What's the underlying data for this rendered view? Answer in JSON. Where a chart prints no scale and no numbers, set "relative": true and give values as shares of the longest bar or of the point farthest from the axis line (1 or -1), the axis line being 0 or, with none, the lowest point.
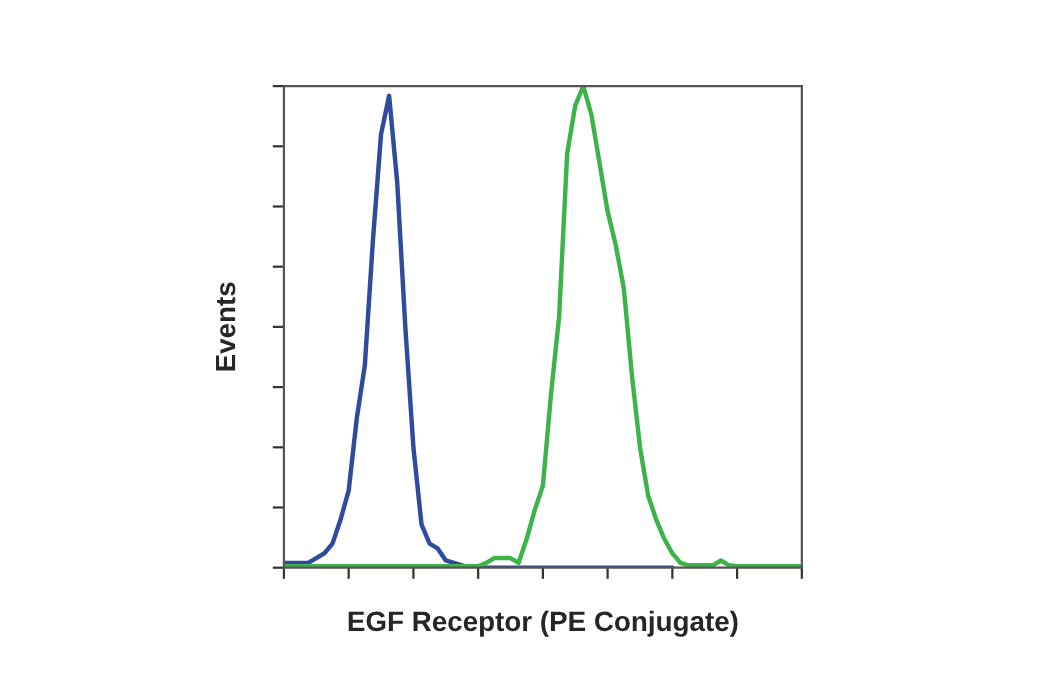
{
  "chart_data": {
    "type": "line",
    "relative": true,
    "xlabel": "EGF Receptor (PE Conjugate)",
    "ylabel": "Events",
    "grid": false,
    "marker": "none",
    "line_style": "solid",
    "categories": [
      null,
      null,
      null,
      null,
      null,
      null,
      null,
      null,
      null,
      null,
      null,
      null,
      null,
      null,
      null,
      null,
      null,
      null,
      null,
      null,
      null,
      null,
      null,
      null,
      null,
      null,
      null,
      null,
      null,
      null,
      null,
      null,
      null,
      null,
      null,
      null,
      null,
      null,
      null,
      null,
      null,
      null,
      null,
      null,
      null,
      null,
      null,
      null,
      null,
      null,
      null,
      null,
      null,
      null,
      null,
      null,
      null,
      null,
      null,
      null,
      null,
      null,
      null,
      null,
      null
    ],
    "series": [
      {
        "color": "#2e4b9e",
        "values": [
          0.01,
          0.01,
          0.01,
          0.01,
          0.02,
          0.03,
          0.05,
          0.1,
          0.16,
          0.31,
          0.42,
          0.68,
          0.9,
          0.98,
          0.8,
          0.5,
          0.25,
          0.09,
          0.05,
          0.04,
          0.015,
          0.01,
          0.005,
          0,
          0,
          0,
          0,
          0,
          0,
          0,
          0,
          0,
          0,
          0,
          0,
          0,
          0,
          0,
          0,
          0,
          0,
          0,
          0,
          0,
          0,
          0,
          0,
          0,
          0,
          null,
          null,
          null,
          null,
          null,
          null,
          null,
          null,
          null,
          null,
          null,
          null,
          null,
          null,
          null,
          null
        ]
      },
      {
        "color": "#3cb44a",
        "values": [
          0.003,
          0.003,
          0.003,
          0.003,
          0.003,
          0.003,
          0.003,
          0.003,
          0.003,
          0.003,
          0.003,
          0.003,
          0.003,
          0.003,
          0.003,
          0.003,
          0.003,
          0.003,
          0.003,
          0.003,
          0.003,
          0.003,
          0.003,
          0.003,
          0.003,
          0.01,
          0.02,
          0.02,
          0.02,
          0.01,
          0.06,
          0.12,
          0.17,
          0.36,
          0.52,
          0.86,
          0.96,
          1,
          0.94,
          0.84,
          0.74,
          0.67,
          0.58,
          0.4,
          0.25,
          0.15,
          0.1,
          0.06,
          0.03,
          0.01,
          0.005,
          0.005,
          0.005,
          0.005,
          0.015,
          0.005,
          0.003,
          0.003,
          0.003,
          0.003,
          0.003,
          0.003,
          0.003,
          0.003,
          0.003
        ]
      }
    ]
  }
}
